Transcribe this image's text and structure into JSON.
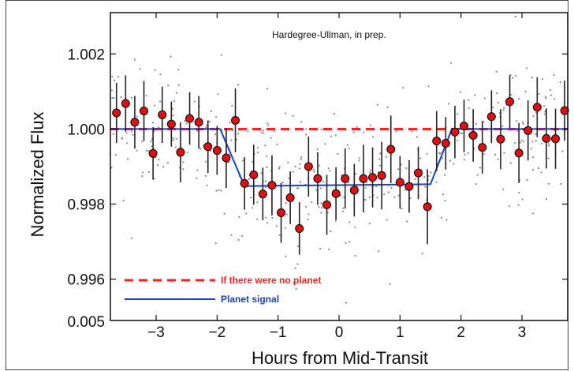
{
  "chart_data": {
    "type": "scatter",
    "credit": "Hardegree-Ullman, in prep.",
    "xlabel": "Hours from Mid-Transit",
    "ylabel": "Normalized Flux",
    "xlim": [
      -3.75,
      3.75
    ],
    "ylim": [
      0.9949,
      1.0031
    ],
    "x_ticks": [
      -3,
      -2,
      -1,
      0,
      1,
      2,
      3
    ],
    "x_tick_labels": [
      "−3",
      "−2",
      "−1",
      "0",
      "1",
      "2",
      "3"
    ],
    "y_ticks": [
      0.996,
      0.998,
      1.0,
      1.002
    ],
    "y_tick_labels": [
      "0.996",
      "0.998",
      "1.000",
      "1.002"
    ],
    "y_bottom_label": "0.005",
    "grid": false,
    "legend_position": "bottom-left",
    "colors": {
      "data_points": "#e01010",
      "no_planet_line": "#ff2020",
      "planet_signal": "#1a3fd8",
      "errorbars": "#222222",
      "background_points": "#888888"
    },
    "series": [
      {
        "name": "If there were no planet",
        "kind": "dashed-line",
        "x": [
          -3.75,
          3.75
        ],
        "y": [
          1.0,
          1.0
        ]
      },
      {
        "name": "Planet signal",
        "kind": "model-line",
        "x": [
          -3.75,
          -1.95,
          -1.55,
          1.5,
          1.85,
          3.75
        ],
        "y": [
          1.0,
          1.0,
          0.99848,
          0.99853,
          1.0,
          1.0
        ]
      },
      {
        "kind": "binned-data",
        "x": [
          -3.65,
          -3.5,
          -3.35,
          -3.2,
          -3.05,
          -2.9,
          -2.75,
          -2.6,
          -2.45,
          -2.3,
          -2.15,
          -2.0,
          -1.85,
          -1.7,
          -1.55,
          -1.4,
          -1.25,
          -1.1,
          -0.95,
          -0.8,
          -0.65,
          -0.5,
          -0.35,
          -0.2,
          -0.05,
          0.1,
          0.25,
          0.4,
          0.55,
          0.7,
          0.85,
          1.0,
          1.15,
          1.3,
          1.45,
          1.6,
          1.75,
          1.9,
          2.05,
          2.2,
          2.35,
          2.5,
          2.65,
          2.8,
          2.95,
          3.1,
          3.25,
          3.4,
          3.55,
          3.7
        ],
        "y": [
          1.00043,
          1.00068,
          1.00018,
          1.00048,
          0.99935,
          1.00038,
          1.00013,
          0.99938,
          1.00028,
          1.00018,
          0.99953,
          0.99943,
          0.99923,
          1.00023,
          0.99855,
          0.99878,
          0.99827,
          0.9985,
          0.99777,
          0.99817,
          0.99735,
          0.999,
          0.99868,
          0.99798,
          0.99828,
          0.99868,
          0.99837,
          0.99868,
          0.99871,
          0.99876,
          0.99946,
          0.99858,
          0.99847,
          0.99883,
          0.99793,
          0.99968,
          0.99962,
          0.99992,
          1.00008,
          0.99983,
          0.99951,
          1.00033,
          0.99973,
          1.00073,
          0.99936,
          0.99996,
          1.00058,
          0.99975,
          0.99974,
          1.00049
        ],
        "yerr": [
          0.0008,
          0.00075,
          0.0007,
          0.0008,
          0.0007,
          0.00075,
          0.0006,
          0.0008,
          0.0007,
          0.0007,
          0.0007,
          0.00065,
          0.0008,
          0.00085,
          0.0007,
          0.0008,
          0.0007,
          0.0008,
          0.0008,
          0.0007,
          0.0007,
          0.0008,
          0.0007,
          0.0008,
          0.0007,
          0.0008,
          0.0007,
          0.0009,
          0.0008,
          0.0009,
          0.0009,
          0.0007,
          0.0007,
          0.0007,
          0.001,
          0.0008,
          0.0007,
          0.0007,
          0.0007,
          0.0007,
          0.0007,
          0.0007,
          0.0008,
          0.0007,
          0.0008,
          0.0008,
          0.0008,
          0.0008,
          0.0008,
          0.0008
        ]
      }
    ]
  }
}
